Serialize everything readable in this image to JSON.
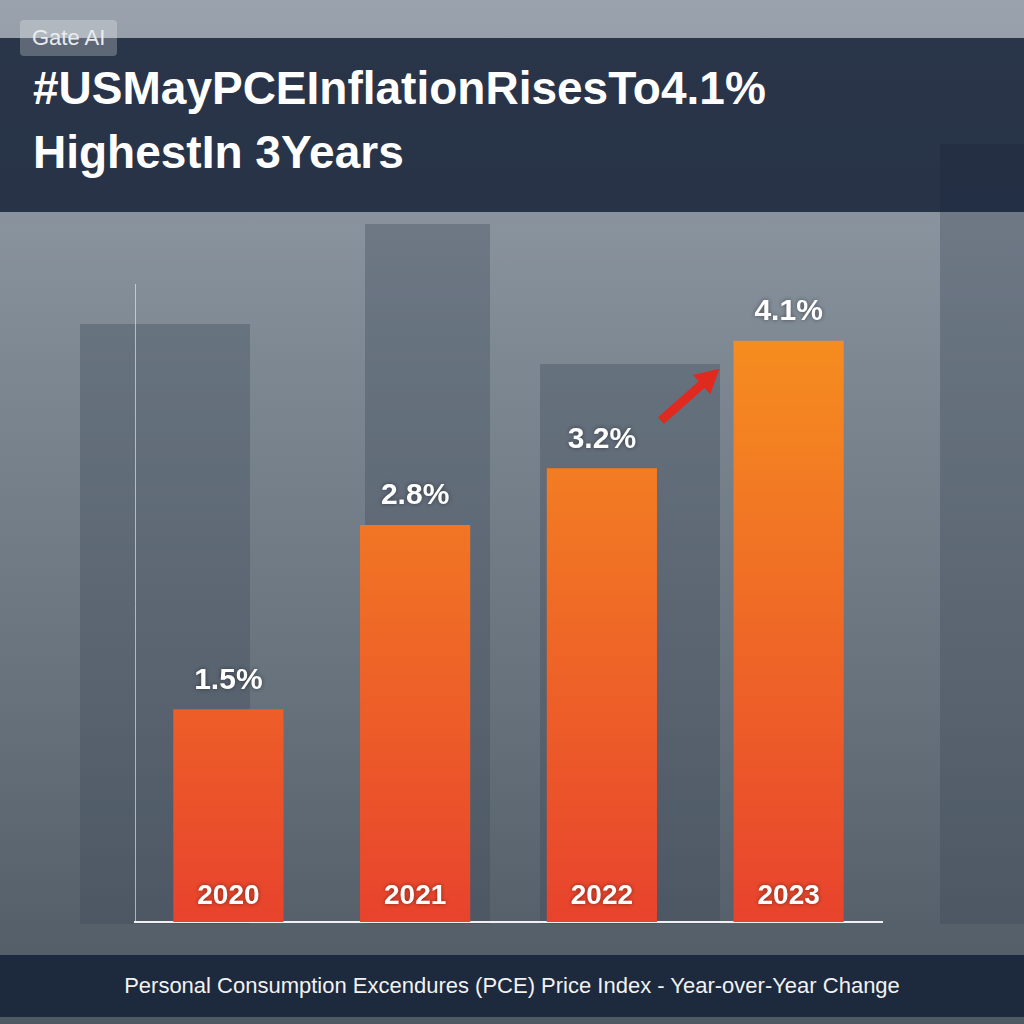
{
  "chart_data": {
    "type": "bar",
    "title": "#USMayPCEInflationRisesTo4.1% HighestIn 3Years",
    "watermark": "Gate AI",
    "footer": "Personal Consumption Excendures (PCE) Price Index - Year-over-Year Change",
    "categories": [
      "2020",
      "2021",
      "2022",
      "2023"
    ],
    "values": [
      1.5,
      2.8,
      3.2,
      4.1
    ],
    "value_labels": [
      "1.5%",
      "2.8%",
      "3.2%",
      "4.1%"
    ],
    "color": "#f7941e",
    "ylim": [
      0,
      4.5
    ],
    "grid": false,
    "data_labels": true,
    "tick_labels": "x"
  }
}
